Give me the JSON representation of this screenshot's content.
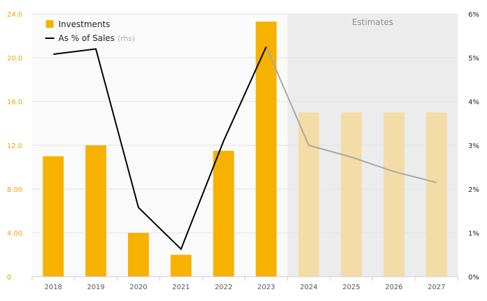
{
  "chart_data": {
    "type": "bar",
    "categories": [
      "2018",
      "2019",
      "2020",
      "2021",
      "2022",
      "2023",
      "2024",
      "2025",
      "2026",
      "2027"
    ],
    "estimate_from_index": 6,
    "estimates_label": "Estimates",
    "series": [
      {
        "name": "Investments",
        "type": "bar",
        "axis": "left",
        "values": [
          11.0,
          12.0,
          4.0,
          2.0,
          11.5,
          23.3,
          15.0,
          15.0,
          15.0,
          15.0
        ],
        "color": "#f7b200",
        "estimate_color": "#f3dca5"
      },
      {
        "name": "As % of Sales",
        "name_suffix": "(rhs)",
        "type": "line",
        "axis": "right",
        "values": [
          5.08,
          5.2,
          1.58,
          0.63,
          3.1,
          5.25,
          3.0,
          2.73,
          2.4,
          2.15
        ],
        "color": "#000000",
        "estimate_color": "#a8a8a8"
      }
    ],
    "y_left": {
      "ylim": [
        0,
        24
      ],
      "ticks": [
        0,
        4,
        8,
        12,
        16,
        20,
        24
      ],
      "tick_labels": [
        "0",
        "4.00",
        "8.00",
        "12.0",
        "16.0",
        "20.0",
        "24.0"
      ]
    },
    "y_right": {
      "ylim": [
        0,
        6
      ],
      "ticks": [
        0,
        1,
        2,
        3,
        4,
        5,
        6
      ],
      "tick_labels": [
        "0%",
        "1%",
        "2%",
        "3%",
        "4%",
        "5%",
        "6%"
      ]
    },
    "grid": true,
    "legend_position": "top-left"
  }
}
